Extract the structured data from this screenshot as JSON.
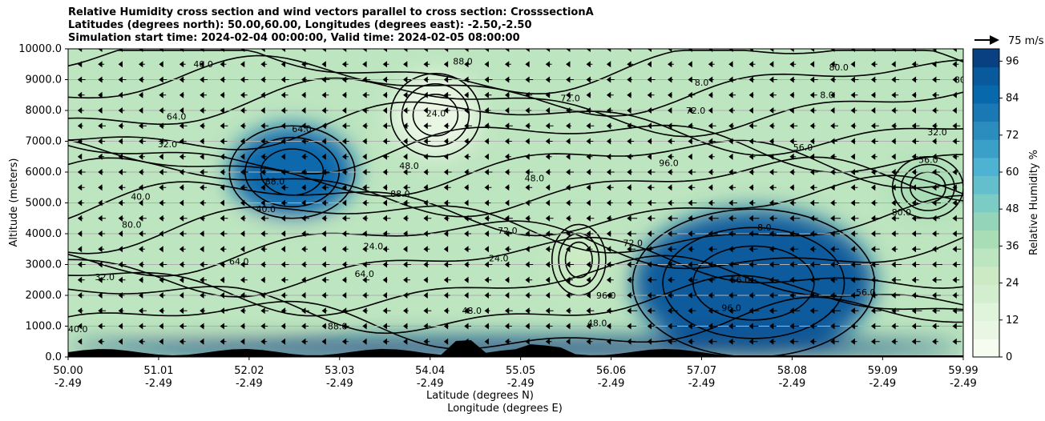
{
  "titles": [
    "Relative Humidity cross section and wind vectors parallel to cross section: CrosssectionA",
    "Latitudes (degrees north): 50.00,60.00, Longitudes (degrees east): -2.50,-2.50",
    "Simulation start time: 2024-02-04 00:00:00, Valid time: 2024-02-05 08:00:00"
  ],
  "chart_data": {
    "type": "heatmap",
    "title": "Relative Humidity cross section and wind vectors parallel to cross section: CrosssectionA",
    "x_ticks_lat": [
      "50.00",
      "51.01",
      "52.02",
      "53.03",
      "54.04",
      "55.05",
      "56.06",
      "57.07",
      "58.08",
      "59.09",
      "59.99"
    ],
    "x_ticks_lon": [
      "-2.49",
      "-2.49",
      "-2.49",
      "-2.49",
      "-2.49",
      "-2.49",
      "-2.49",
      "-2.49",
      "-2.49",
      "-2.49",
      "-2.49"
    ],
    "x_values": [
      50.0,
      51.01,
      52.02,
      53.03,
      54.04,
      55.05,
      56.06,
      57.07,
      58.08,
      59.09,
      59.99
    ],
    "xlabel_line1": "Latitude (degrees N)",
    "xlabel_line2": "Longitude (degrees E)",
    "ylabel": "Altitude (meters)",
    "ylim": [
      0,
      10000
    ],
    "y_ticks": [
      "0.0",
      "1000.0",
      "2000.0",
      "3000.0",
      "4000.0",
      "5000.0",
      "6000.0",
      "7000.0",
      "8000.0",
      "9000.0",
      "10000.0"
    ],
    "y_values": [
      0,
      1000,
      2000,
      3000,
      4000,
      5000,
      6000,
      7000,
      8000,
      9000,
      10000
    ],
    "grid": "horizontal",
    "colorbar": {
      "label": "Relative Humidity %",
      "ticks": [
        "0",
        "12",
        "24",
        "36",
        "48",
        "60",
        "72",
        "84",
        "96"
      ],
      "values": [
        0,
        12,
        24,
        36,
        48,
        60,
        72,
        84,
        96
      ],
      "range": [
        0,
        100
      ],
      "colors": [
        "#f7fcf0",
        "#eaf6e4",
        "#e0f3db",
        "#d3eece",
        "#ccebc5",
        "#bde5bf",
        "#a8ddb5",
        "#94d4b9",
        "#7bccc4",
        "#63bfcc",
        "#4eb3d3",
        "#3aa0c8",
        "#2b8cbe",
        "#1a78b4",
        "#0868ac",
        "#085a9c",
        "#084081"
      ]
    },
    "wind_key": {
      "label": "75 m/s",
      "value": 75
    },
    "contour_labels": [
      "40.0",
      "48.0",
      "56.0",
      "64.0",
      "72.0",
      "80.0",
      "88.0",
      "96.0",
      "32.0",
      "24.0",
      "8.0"
    ],
    "regions": [
      {
        "x_from": 50.0,
        "x_to": 53.5,
        "alt_from": 1200,
        "alt_to": 4200,
        "rh": 32
      },
      {
        "x_from": 51.8,
        "x_to": 53.2,
        "alt_from": 4500,
        "alt_to": 7500,
        "rh": 86
      },
      {
        "x_from": 53.6,
        "x_to": 54.6,
        "alt_from": 6500,
        "alt_to": 9200,
        "rh": 10
      },
      {
        "x_from": 55.4,
        "x_to": 56.0,
        "alt_from": 2000,
        "alt_to": 4300,
        "rh": 24
      },
      {
        "x_from": 56.3,
        "x_to": 59.0,
        "alt_from": 0,
        "alt_to": 4800,
        "rh": 92
      },
      {
        "x_from": 59.2,
        "x_to": 59.99,
        "alt_from": 4500,
        "alt_to": 6500,
        "rh": 38
      },
      {
        "x_from": 50.0,
        "x_to": 59.99,
        "alt_from": 0,
        "alt_to": 600,
        "rh": 96
      }
    ]
  }
}
